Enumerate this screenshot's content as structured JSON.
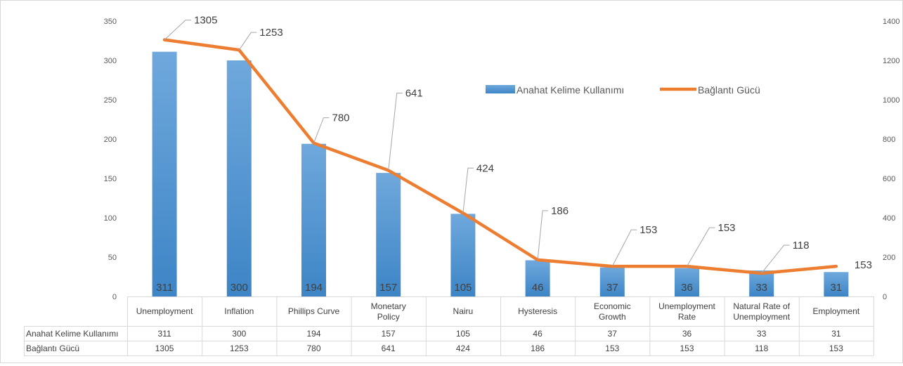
{
  "chart_data": {
    "type": "bar",
    "categories": [
      [
        "Unemployment"
      ],
      [
        "Inflation"
      ],
      [
        "Phillips Curve"
      ],
      [
        "Monetary",
        "Policy"
      ],
      [
        "Nairu"
      ],
      [
        "Hysteresis"
      ],
      [
        "Economic",
        "Growth"
      ],
      [
        "Unemployment",
        "Rate"
      ],
      [
        "Natural Rate of",
        "Unemployment"
      ],
      [
        "Employment"
      ]
    ],
    "series": [
      {
        "name": "Anahat Kelime Kullanımı",
        "type": "bar",
        "axis": "left",
        "color": "#5b9bd5",
        "values": [
          311,
          300,
          194,
          157,
          105,
          46,
          37,
          36,
          33,
          31
        ]
      },
      {
        "name": "Bağlantı Gücü",
        "type": "line",
        "axis": "right",
        "color": "#ed7d31",
        "values": [
          1305,
          1253,
          780,
          641,
          424,
          186,
          153,
          153,
          118,
          153
        ]
      }
    ],
    "y_left": {
      "min": 0,
      "max": 350,
      "step": 50,
      "ticks": [
        "0",
        "50",
        "100",
        "150",
        "200",
        "250",
        "300",
        "350"
      ]
    },
    "y_right": {
      "min": 0,
      "max": 1400,
      "step": 200,
      "ticks": [
        "0",
        "200",
        "400",
        "600",
        "800",
        "1000",
        "1200",
        "1400"
      ]
    },
    "legend_position": "top-right",
    "gridlines": false,
    "data_table": true
  }
}
